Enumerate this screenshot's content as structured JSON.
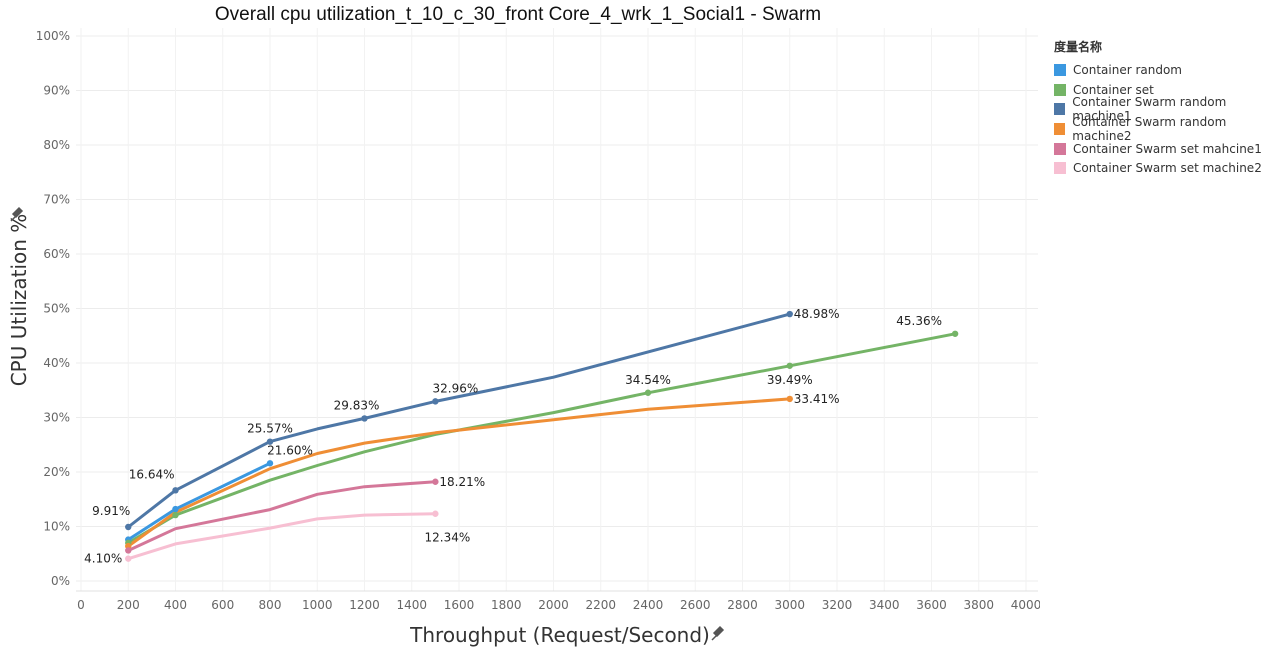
{
  "chart_data": {
    "type": "line",
    "title": "Overall cpu utilization_t_10_c_30_front Core_4_wrk_1_Social1 - Swarm",
    "xlabel": "Throughput (Request/Second)",
    "ylabel": "CPU Utilization %",
    "xlim": [
      0,
      4000
    ],
    "ylim": [
      0,
      100
    ],
    "x_ticks": [
      "0",
      "200",
      "400",
      "600",
      "800",
      "1000",
      "1200",
      "1400",
      "1600",
      "1800",
      "2000",
      "2200",
      "2400",
      "2600",
      "2800",
      "3000",
      "3200",
      "3400",
      "3600",
      "3800",
      "4000"
    ],
    "y_ticks": [
      "0%",
      "10%",
      "20%",
      "30%",
      "40%",
      "50%",
      "60%",
      "70%",
      "80%",
      "90%",
      "100%"
    ],
    "grid": true,
    "legend_title": "度量名称",
    "legend_position": "right",
    "series": [
      {
        "name": "Container random",
        "color": "#3b98e0",
        "points": [
          [
            200,
            7.6
          ],
          [
            400,
            13.2
          ],
          [
            800,
            21.6
          ]
        ]
      },
      {
        "name": "Container set",
        "color": "#74b466",
        "points": [
          [
            200,
            7.0
          ],
          [
            400,
            12.1
          ],
          [
            800,
            18.5
          ],
          [
            1000,
            21.2
          ],
          [
            1200,
            23.7
          ],
          [
            1500,
            26.9
          ],
          [
            2000,
            30.9
          ],
          [
            2400,
            34.54
          ],
          [
            3000,
            39.49
          ],
          [
            3700,
            45.36
          ]
        ]
      },
      {
        "name": "Container Swarm random machine1",
        "color": "#4e77a6",
        "points": [
          [
            200,
            9.91
          ],
          [
            400,
            16.64
          ],
          [
            800,
            25.57
          ],
          [
            1000,
            27.9
          ],
          [
            1200,
            29.83
          ],
          [
            1500,
            32.96
          ],
          [
            2000,
            37.4
          ],
          [
            3000,
            48.98
          ]
        ]
      },
      {
        "name": "Container Swarm random machine2",
        "color": "#ef8e35",
        "points": [
          [
            200,
            6.4
          ],
          [
            400,
            12.6
          ],
          [
            800,
            20.6
          ],
          [
            1000,
            23.4
          ],
          [
            1200,
            25.3
          ],
          [
            1500,
            27.2
          ],
          [
            2000,
            29.6
          ],
          [
            2400,
            31.5
          ],
          [
            3000,
            33.41
          ]
        ]
      },
      {
        "name": "Container Swarm set mahcine1",
        "color": "#d47799",
        "points": [
          [
            200,
            5.6
          ],
          [
            400,
            9.6
          ],
          [
            800,
            13.1
          ],
          [
            1000,
            15.9
          ],
          [
            1200,
            17.3
          ],
          [
            1500,
            18.21
          ]
        ]
      },
      {
        "name": "Container Swarm set machine2",
        "color": "#f7bfd2",
        "points": [
          [
            200,
            4.1
          ],
          [
            400,
            6.8
          ],
          [
            800,
            9.7
          ],
          [
            1000,
            11.4
          ],
          [
            1200,
            12.1
          ],
          [
            1500,
            12.34
          ]
        ]
      }
    ],
    "markers": [
      {
        "series": 0,
        "points": [
          [
            200,
            7.6
          ],
          [
            400,
            13.2
          ],
          [
            800,
            21.6
          ]
        ]
      },
      {
        "series": 1,
        "points": [
          [
            200,
            7.0
          ],
          [
            400,
            12.1
          ],
          [
            2400,
            34.54
          ],
          [
            3000,
            39.49
          ],
          [
            3700,
            45.36
          ]
        ]
      },
      {
        "series": 2,
        "points": [
          [
            200,
            9.91
          ],
          [
            400,
            16.64
          ],
          [
            800,
            25.57
          ],
          [
            1200,
            29.83
          ],
          [
            1500,
            32.96
          ],
          [
            3000,
            48.98
          ]
        ]
      },
      {
        "series": 3,
        "points": [
          [
            200,
            6.4
          ],
          [
            3000,
            33.41
          ]
        ]
      },
      {
        "series": 4,
        "points": [
          [
            200,
            5.6
          ],
          [
            1500,
            18.21
          ]
        ]
      },
      {
        "series": 5,
        "points": [
          [
            200,
            4.1
          ],
          [
            1500,
            12.34
          ]
        ]
      }
    ],
    "data_labels": [
      {
        "text": "9.91%",
        "x": 200,
        "y": 9.91,
        "pos": "above-left"
      },
      {
        "text": "16.64%",
        "x": 400,
        "y": 16.64,
        "pos": "above-left"
      },
      {
        "text": "25.57%",
        "x": 800,
        "y": 25.57,
        "pos": "above"
      },
      {
        "text": "21.60%",
        "x": 800,
        "y": 21.6,
        "pos": "above-right"
      },
      {
        "text": "29.83%",
        "x": 1200,
        "y": 29.83,
        "pos": "above-left"
      },
      {
        "text": "32.96%",
        "x": 1500,
        "y": 32.96,
        "pos": "above-right"
      },
      {
        "text": "34.54%",
        "x": 2400,
        "y": 34.54,
        "pos": "above"
      },
      {
        "text": "48.98%",
        "x": 3000,
        "y": 48.98,
        "pos": "right"
      },
      {
        "text": "39.49%",
        "x": 3000,
        "y": 39.49,
        "pos": "below"
      },
      {
        "text": "33.41%",
        "x": 3000,
        "y": 33.41,
        "pos": "right"
      },
      {
        "text": "45.36%",
        "x": 3700,
        "y": 45.36,
        "pos": "above-left"
      },
      {
        "text": "18.21%",
        "x": 1500,
        "y": 18.21,
        "pos": "right"
      },
      {
        "text": "12.34%",
        "x": 1500,
        "y": 12.34,
        "pos": "below"
      },
      {
        "text": "4.10%",
        "x": 200,
        "y": 4.1,
        "pos": "left"
      }
    ]
  }
}
